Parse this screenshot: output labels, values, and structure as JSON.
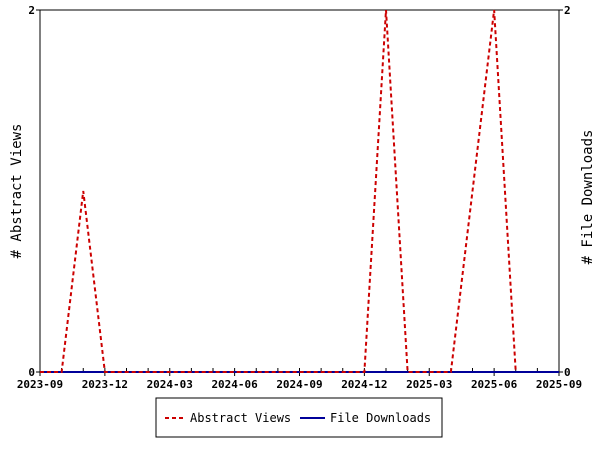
{
  "chart_data": {
    "type": "line",
    "left_axis_label": "# Abstract Views",
    "right_axis_label": "# File Downloads",
    "x_ticks": [
      "2023-09",
      "2023-12",
      "2024-03",
      "2024-06",
      "2024-09",
      "2024-12",
      "2025-03",
      "2025-06",
      "2025-09"
    ],
    "y_left_ticks": [
      "0",
      "2"
    ],
    "y_right_ticks": [
      "0",
      "2"
    ],
    "xlim": [
      "2023-09",
      "2025-09"
    ],
    "ylim_left": [
      0,
      2
    ],
    "ylim_right": [
      0,
      2
    ],
    "grid": false,
    "legend_position": "bottom",
    "series": [
      {
        "name": "Abstract Views",
        "color": "#cc0000",
        "style": "dashed",
        "axis": "left",
        "points": [
          {
            "x": "2023-09",
            "y": 0
          },
          {
            "x": "2023-10",
            "y": 0
          },
          {
            "x": "2023-11",
            "y": 1
          },
          {
            "x": "2023-12",
            "y": 0
          },
          {
            "x": "2024-12",
            "y": 0
          },
          {
            "x": "2025-01",
            "y": 2
          },
          {
            "x": "2025-02",
            "y": 0
          },
          {
            "x": "2025-04",
            "y": 0
          },
          {
            "x": "2025-05",
            "y": 1
          },
          {
            "x": "2025-06",
            "y": 2
          },
          {
            "x": "2025-07",
            "y": 0
          }
        ]
      },
      {
        "name": "File Downloads",
        "color": "#000099",
        "style": "solid",
        "axis": "right",
        "points": [
          {
            "x": "2023-09",
            "y": 0
          },
          {
            "x": "2025-09",
            "y": 0
          }
        ]
      }
    ]
  }
}
